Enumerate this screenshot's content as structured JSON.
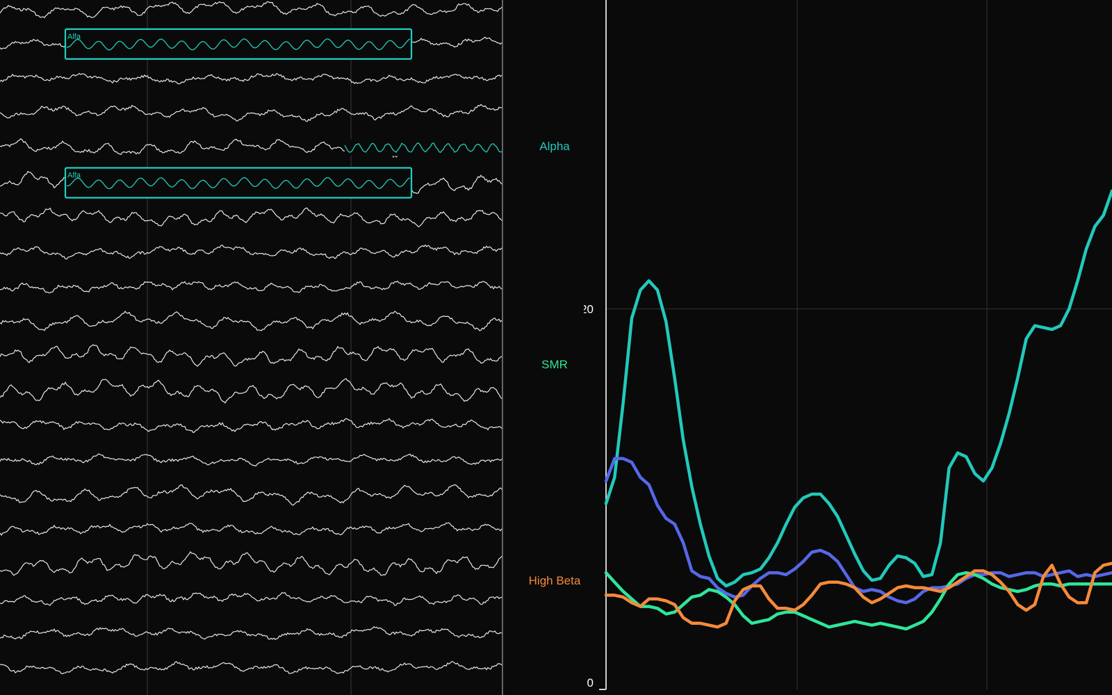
{
  "eeg": {
    "channel_count": 20,
    "annotation_label": "Alfa",
    "annotation_color": "#1fcfc0",
    "annotated_channels": [
      1,
      5
    ],
    "trace_color": "#e8e8e8",
    "highlight_color": "#1fcfc0"
  },
  "band_labels": [
    {
      "name": "alpha",
      "label": "Alpha",
      "color": "#22c9bb"
    },
    {
      "name": "smr",
      "label": "SMR",
      "color": "#2ee69a"
    },
    {
      "name": "high-beta",
      "label": "High Beta",
      "color": "#f58a3a"
    }
  ],
  "chart_data": {
    "type": "line",
    "title": "",
    "xlabel": "",
    "ylabel": "",
    "ylim": [
      0,
      36.5
    ],
    "yticks": [
      0,
      20
    ],
    "x": [
      0,
      1,
      2,
      3,
      4,
      5,
      6,
      7,
      8,
      9,
      10,
      11,
      12,
      13,
      14,
      15,
      16,
      17,
      18,
      19,
      20,
      21,
      22,
      23,
      24,
      25,
      26,
      27,
      28,
      29,
      30,
      31,
      32,
      33,
      34,
      35,
      36,
      37,
      38,
      39,
      40,
      41,
      42,
      43,
      44,
      45,
      46,
      47,
      48,
      49,
      50,
      51,
      52,
      53,
      54,
      55,
      56,
      57,
      58,
      59
    ],
    "series": [
      {
        "color": "#22c9bb",
        "values": [
          9.6,
          11.0,
          15.0,
          19.5,
          21.0,
          21.5,
          21.0,
          19.3,
          16.3,
          13.0,
          10.5,
          8.5,
          6.8,
          5.6,
          5.2,
          5.4,
          5.8,
          5.9,
          6.1,
          6.7,
          7.5,
          8.5,
          9.4,
          9.9,
          10.1,
          10.1,
          9.6,
          8.9,
          7.9,
          6.9,
          6.0,
          5.5,
          5.6,
          6.3,
          6.8,
          6.7,
          6.4,
          5.7,
          5.8,
          7.5,
          11.5,
          12.3,
          12.1,
          11.2,
          10.8,
          11.5,
          12.8,
          14.4,
          16.3,
          18.4,
          19.1,
          19.0,
          18.9,
          19.1,
          20.0,
          21.5,
          23.2,
          24.4,
          25.0,
          26.3
        ]
      },
      {
        "color": "#5568e8",
        "values": [
          10.8,
          12.0,
          12.0,
          11.8,
          11.0,
          10.6,
          9.5,
          8.8,
          8.5,
          7.5,
          6.0,
          5.7,
          5.6,
          5.1,
          4.8,
          4.6,
          4.7,
          5.2,
          5.6,
          5.9,
          5.9,
          5.8,
          6.1,
          6.5,
          7.0,
          7.1,
          6.9,
          6.5,
          5.8,
          5.1,
          4.9,
          5.0,
          4.9,
          4.6,
          4.4,
          4.3,
          4.5,
          4.9,
          5.1,
          5.1,
          5.2,
          5.3,
          5.6,
          5.8,
          5.8,
          5.9,
          5.9,
          5.7,
          5.8,
          5.9,
          5.9,
          5.7,
          5.8,
          5.9,
          6.0,
          5.7,
          5.8,
          5.7,
          5.8,
          5.9
        ]
      },
      {
        "color": "#2ee69a",
        "values": [
          5.9,
          5.4,
          4.9,
          4.5,
          4.1,
          4.1,
          4.0,
          3.7,
          3.8,
          4.2,
          4.6,
          4.7,
          5.0,
          4.9,
          4.6,
          4.2,
          3.6,
          3.2,
          3.3,
          3.4,
          3.7,
          3.8,
          3.8,
          3.6,
          3.4,
          3.2,
          3.0,
          3.1,
          3.2,
          3.3,
          3.2,
          3.1,
          3.2,
          3.1,
          3.0,
          2.9,
          3.1,
          3.3,
          3.8,
          4.5,
          5.3,
          5.8,
          5.9,
          5.8,
          5.6,
          5.3,
          5.1,
          5.0,
          4.9,
          5.0,
          5.2,
          5.3,
          5.3,
          5.2,
          5.3,
          5.3,
          5.3,
          5.3,
          5.3,
          5.3
        ]
      },
      {
        "color": "#f58a3a",
        "values": [
          4.7,
          4.7,
          4.6,
          4.3,
          4.1,
          4.5,
          4.5,
          4.4,
          4.2,
          3.5,
          3.2,
          3.2,
          3.1,
          3.0,
          3.2,
          4.4,
          5.0,
          5.2,
          5.2,
          4.5,
          4.0,
          4.0,
          3.9,
          4.2,
          4.7,
          5.3,
          5.4,
          5.4,
          5.3,
          5.1,
          4.6,
          4.3,
          4.5,
          4.8,
          5.1,
          5.2,
          5.1,
          5.1,
          5.0,
          4.9,
          5.1,
          5.4,
          5.7,
          6.0,
          6.0,
          5.8,
          5.4,
          4.9,
          4.2,
          3.9,
          4.2,
          5.7,
          6.3,
          5.3,
          4.6,
          4.3,
          4.3,
          5.9,
          6.3,
          6.4
        ]
      }
    ],
    "grid": true
  }
}
